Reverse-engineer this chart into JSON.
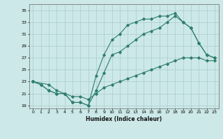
{
  "xlabel": "Humidex (Indice chaleur)",
  "bg_color": "#cce8e8",
  "line_color": "#2e7d6e",
  "grid_color": "#aacccc",
  "xlim": [
    -0.5,
    23.5
  ],
  "ylim": [
    18.5,
    36
  ],
  "xticks": [
    0,
    1,
    2,
    3,
    4,
    5,
    6,
    7,
    8,
    9,
    10,
    11,
    12,
    13,
    14,
    15,
    16,
    17,
    18,
    19,
    20,
    21,
    22,
    23
  ],
  "yticks": [
    19,
    21,
    23,
    25,
    27,
    29,
    31,
    33,
    35
  ],
  "line1_x": [
    0,
    1,
    2,
    3,
    4,
    5,
    6,
    7,
    8,
    9,
    10,
    11,
    12,
    13,
    14,
    15,
    16,
    17,
    18,
    19,
    20,
    21,
    22,
    23
  ],
  "line1_y": [
    23,
    22.5,
    21.5,
    21,
    21,
    19.5,
    19.5,
    19,
    24,
    27.5,
    30,
    31,
    32.5,
    33,
    33.5,
    33.5,
    34,
    34,
    34.5,
    33,
    32,
    29.5,
    27.5,
    27
  ],
  "line2_x": [
    0,
    1,
    2,
    3,
    4,
    5,
    6,
    7,
    8,
    9,
    10,
    11,
    12,
    13,
    14,
    15,
    16,
    17,
    18,
    19,
    20,
    21,
    22,
    23
  ],
  "line2_y": [
    23,
    22.5,
    21.5,
    21,
    21,
    19.5,
    19.5,
    19,
    21.5,
    24.5,
    27.5,
    28,
    29,
    30,
    31,
    31.5,
    32,
    33,
    34,
    33,
    32,
    29.5,
    27.5,
    27
  ],
  "line3_x": [
    0,
    2,
    3,
    4,
    5,
    6,
    7,
    8,
    9,
    10,
    11,
    12,
    13,
    14,
    15,
    16,
    17,
    18,
    19,
    20,
    21,
    22,
    23
  ],
  "line3_y": [
    23,
    22.5,
    21.5,
    21,
    20.5,
    20.5,
    20.0,
    21,
    22,
    22.5,
    23,
    23.5,
    24,
    24.5,
    25,
    25.5,
    26,
    26.5,
    27,
    27,
    27,
    26.5,
    26.5
  ]
}
